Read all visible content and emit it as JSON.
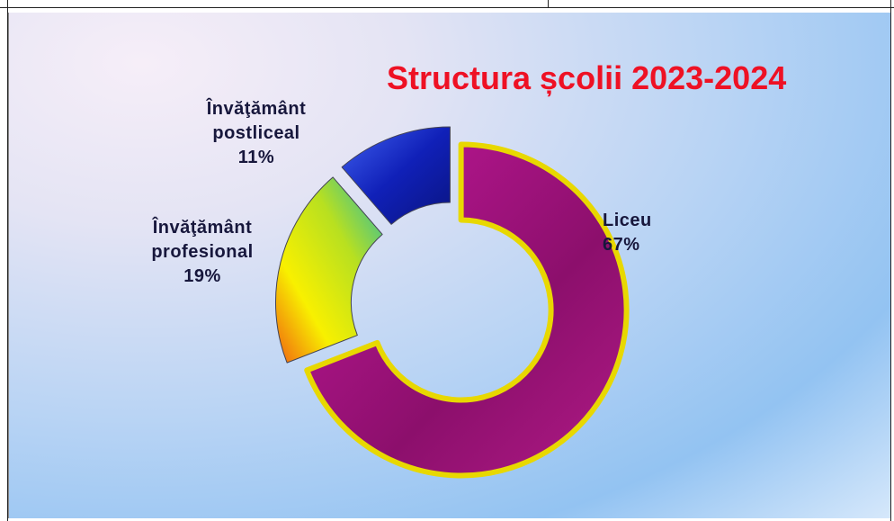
{
  "chart_data": {
    "type": "pie",
    "donut": true,
    "title": "Structura școlii 2023-2024",
    "categories": [
      "Liceu",
      "Învăţământ profesional",
      "Învăţământ postliceal"
    ],
    "values": [
      67,
      19,
      11
    ],
    "value_labels": [
      "67%",
      "19%",
      "11%"
    ],
    "colors": [
      "#a0127c",
      "#c8e020",
      "#1a2ec8"
    ]
  }
}
